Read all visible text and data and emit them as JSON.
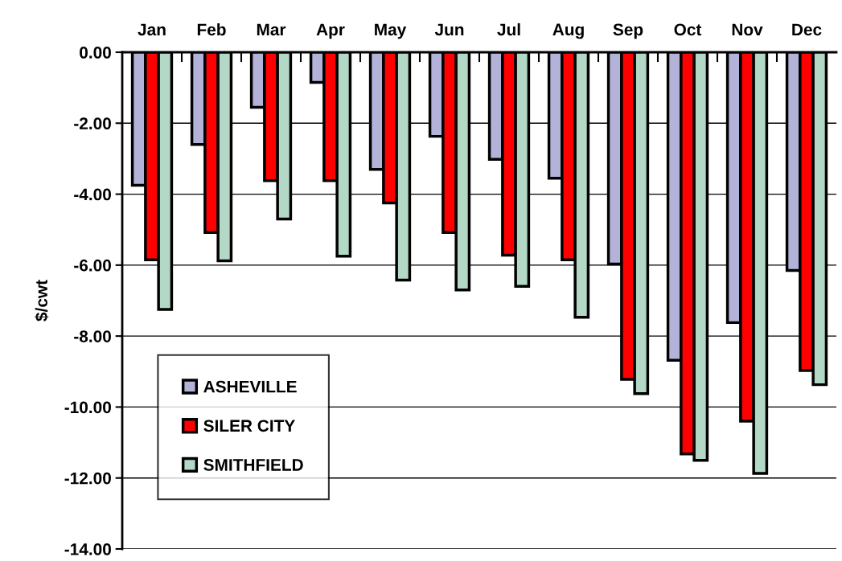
{
  "chart_data": {
    "type": "bar",
    "ylabel": "$/cwt",
    "categories": [
      "Jan",
      "Feb",
      "Mar",
      "Apr",
      "May",
      "Jun",
      "Jul",
      "Aug",
      "Sep",
      "Oct",
      "Nov",
      "Dec"
    ],
    "series": [
      {
        "name": "ASHEVILLE",
        "color": "#b3b3d9",
        "values": [
          -3.75,
          -2.6,
          -1.55,
          -0.85,
          -3.3,
          -2.37,
          -3.02,
          -3.55,
          -5.97,
          -8.68,
          -7.62,
          -6.15
        ]
      },
      {
        "name": "SILER CITY",
        "color": "#ff0000",
        "values": [
          -5.85,
          -5.08,
          -3.62,
          -3.62,
          -4.25,
          -5.08,
          -5.72,
          -5.85,
          -9.22,
          -11.32,
          -10.4,
          -8.97
        ]
      },
      {
        "name": "SMITHFIELD",
        "color": "#b3d9c6",
        "values": [
          -7.25,
          -5.88,
          -4.7,
          -5.75,
          -6.42,
          -6.7,
          -6.6,
          -7.47,
          -9.62,
          -11.5,
          -11.87,
          -9.37
        ]
      }
    ],
    "ylim": [
      -14,
      0
    ],
    "yticks": [
      {
        "value": 0,
        "label": "0.00"
      },
      {
        "value": -2,
        "label": "-2.00"
      },
      {
        "value": -4,
        "label": "-4.00"
      },
      {
        "value": -6,
        "label": "-6.00"
      },
      {
        "value": -8,
        "label": "-8.00"
      },
      {
        "value": -10,
        "label": "-10.00"
      },
      {
        "value": -12,
        "label": "-12.00"
      },
      {
        "value": -14,
        "label": "-14.00"
      }
    ],
    "grid": "y",
    "legend": "bottom left"
  }
}
